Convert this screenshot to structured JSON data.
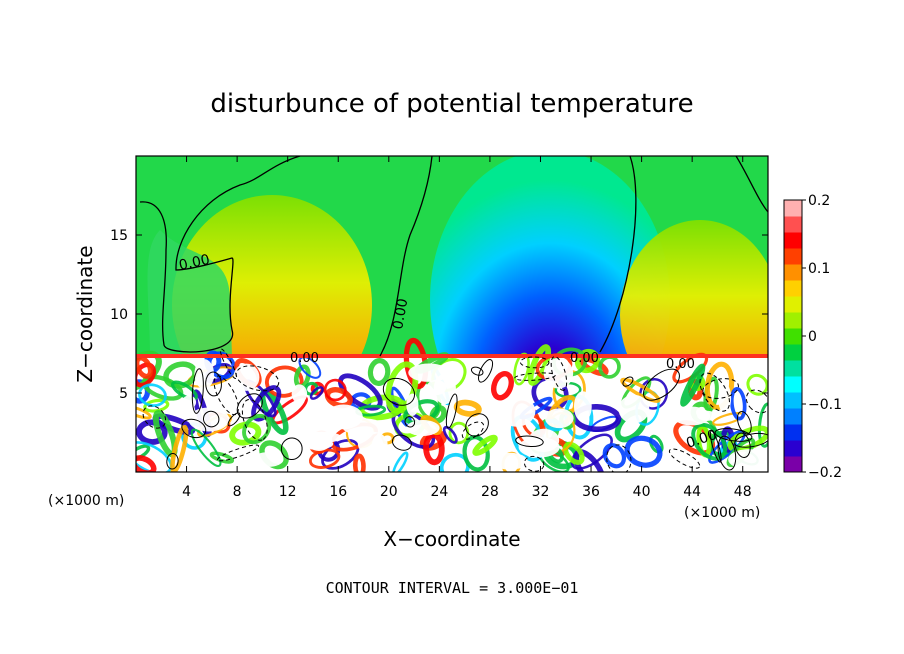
{
  "chart_data": {
    "type": "heatmap",
    "title": "disturbunce of potential temperature",
    "xlabel": "X−coordinate",
    "ylabel": "Z−coordinate",
    "x_unit_left": "(×1000 m)",
    "x_unit_right": "(×1000 m)",
    "xlim": [
      0,
      50
    ],
    "ylim": [
      0,
      20
    ],
    "x_ticks": [
      4,
      8,
      12,
      16,
      20,
      24,
      28,
      32,
      36,
      40,
      44,
      48
    ],
    "y_ticks": [
      5,
      10,
      15
    ],
    "colorbar": {
      "range": [
        -0.2,
        0.2
      ],
      "tick_values": [
        0.2,
        0.1,
        0,
        -0.1,
        -0.2
      ],
      "tick_labels": [
        "0.2",
        "0.1",
        "0",
        "−0.1",
        "−0.2"
      ],
      "colors": [
        "#7a00a8",
        "#2a00d0",
        "#0030f0",
        "#0080ff",
        "#00c0ff",
        "#00ffff",
        "#00e0a0",
        "#00d040",
        "#40e000",
        "#a0f000",
        "#e0f000",
        "#ffd000",
        "#ff9000",
        "#ff4000",
        "#ff0000",
        "#ff5050",
        "#ffb0b0"
      ]
    },
    "contour_label": "0.00",
    "footer": "CONTOUR INTERVAL = 3.000E−01"
  }
}
